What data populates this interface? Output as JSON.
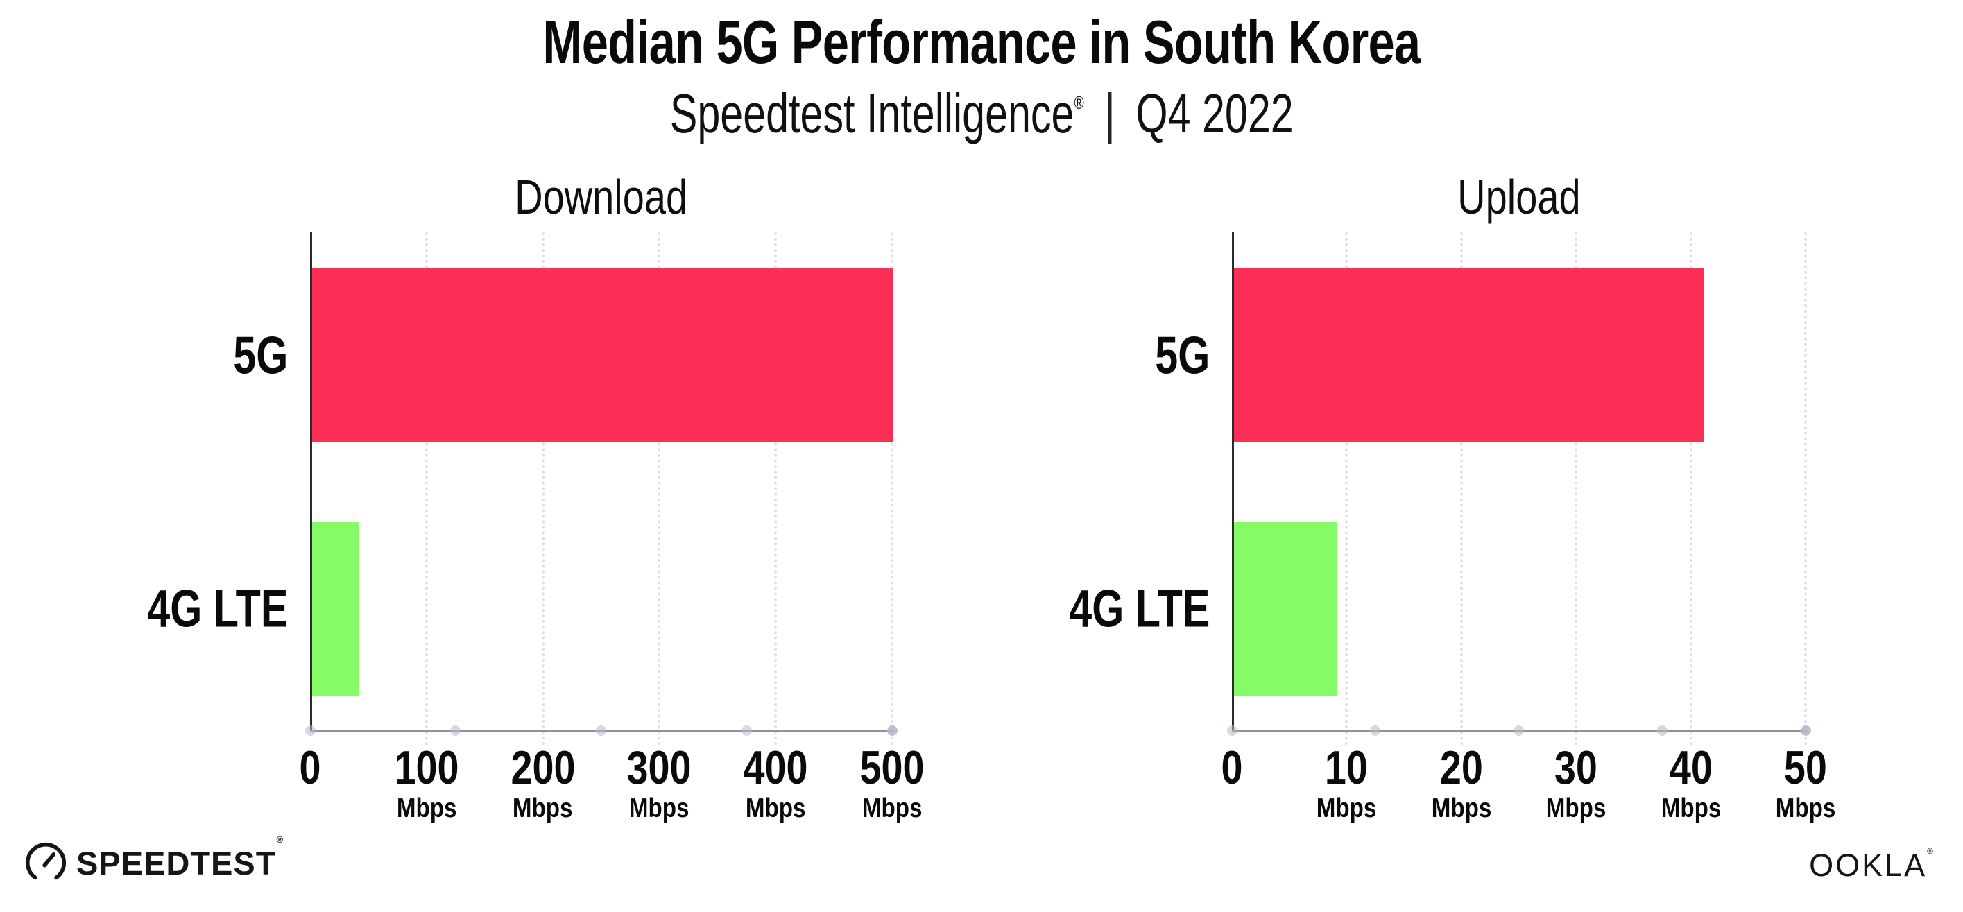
{
  "header": {
    "title": "Median 5G Performance in South Korea",
    "subtitle_brand": "Speedtest Intelligence",
    "subtitle_reg": "®",
    "subtitle_divider": "|",
    "subtitle_period": "Q4 2022"
  },
  "footer": {
    "speedtest_label": "SPEEDTEST",
    "speedtest_reg": "®",
    "speedtest_icon": "speedtest-gauge-icon",
    "ookla_label": "OOKLA",
    "ookla_reg": "®"
  },
  "colors": {
    "bar_5g": "#fb2e55",
    "bar_4g": "#85fc66",
    "gridline": "#dfdfe9",
    "x_axis_line": "#90919b",
    "axis_dot": "#b7b8c8",
    "y_axis_line": "#2b2b2b",
    "text": "#0a0a0a"
  },
  "chart_data": [
    {
      "type": "bar",
      "orientation": "horizontal",
      "title": "Download",
      "categories": [
        "5G",
        "4G LTE"
      ],
      "values": [
        499,
        40
      ],
      "unit": "Mbps",
      "xlim": [
        0,
        500
      ],
      "xticks": [
        0,
        100,
        200,
        300,
        400,
        500
      ],
      "tick_unit_label": "Mbps",
      "unit_on_zero": false,
      "bar_colors": [
        "#fb2e55",
        "#85fc66"
      ],
      "grid": "dotted-vertical",
      "legend": "none"
    },
    {
      "type": "bar",
      "orientation": "horizontal",
      "title": "Upload",
      "categories": [
        "5G",
        "4G LTE"
      ],
      "values": [
        41,
        9
      ],
      "unit": "Mbps",
      "xlim": [
        0,
        50
      ],
      "xticks": [
        0,
        10,
        20,
        30,
        40,
        50
      ],
      "tick_unit_label": "Mbps",
      "unit_on_zero": false,
      "bar_colors": [
        "#fb2e55",
        "#85fc66"
      ],
      "grid": "dotted-vertical",
      "legend": "none"
    }
  ]
}
